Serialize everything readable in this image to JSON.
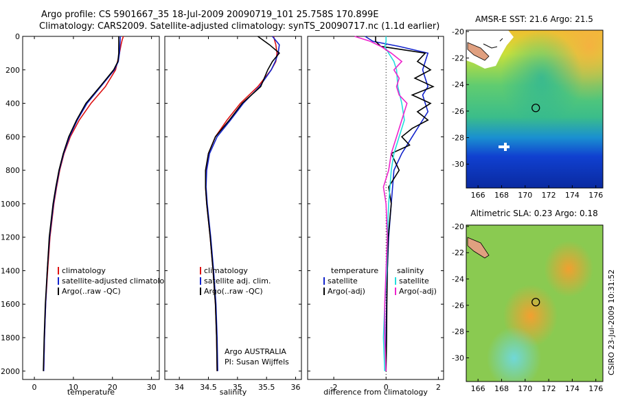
{
  "header": {
    "title_line1": "Argo profile: CS 5901667_35 18-Jul-2009 20090719_101 25.758S 170.899E",
    "title_line2": "Climatology: CARS2009. Satellite-adjusted climatology: synTS_20090717.nc (1.1d earlier)"
  },
  "credits": {
    "argo_line1": "Argo AUSTRALIA",
    "argo_line2": "PI: Susan Wijffels",
    "csiro_stamp": "CSIRO 23-Jul-2009 10:31:52"
  },
  "colors": {
    "climatology": "#dd1111",
    "satellite": "#1122cc",
    "argo": "#000000",
    "satellite_salinity": "#22dddd",
    "argo_salinity": "#ee22cc"
  },
  "chart_data": [
    {
      "type": "line",
      "id": "temperature",
      "title": "",
      "xlabel": "temperature",
      "ylabel": "",
      "xlim": [
        -3,
        32
      ],
      "ylim": [
        2050,
        0
      ],
      "xticks": [
        0,
        10,
        20,
        30
      ],
      "yticks": [
        0,
        200,
        400,
        600,
        800,
        1000,
        1200,
        1400,
        1600,
        1800,
        2000
      ],
      "legend": [
        "climatology",
        "satellite-adjusted climatology",
        "Argo(..raw -QC)"
      ],
      "series": [
        {
          "name": "climatology",
          "color": "#dd1111",
          "depth": [
            0,
            20,
            50,
            100,
            150,
            200,
            300,
            400,
            500,
            600,
            700,
            800,
            900,
            1000,
            1200,
            1400,
            1600,
            1800,
            2000
          ],
          "values": [
            22.8,
            22.5,
            22.2,
            21.8,
            21.3,
            20.8,
            18.2,
            14.5,
            11.5,
            9.2,
            7.6,
            6.5,
            5.7,
            5.0,
            4.0,
            3.4,
            2.9,
            2.6,
            2.4
          ]
        },
        {
          "name": "satellite-adjusted climatology",
          "color": "#1122cc",
          "depth": [
            0,
            20,
            50,
            100,
            150,
            200,
            300,
            400,
            500,
            600,
            700,
            800,
            900,
            1000,
            1200,
            1400,
            1600,
            1800,
            2000
          ],
          "values": [
            22.0,
            22.0,
            21.9,
            21.8,
            21.5,
            20.5,
            17.0,
            13.5,
            11.0,
            9.0,
            7.5,
            6.4,
            5.6,
            4.9,
            3.9,
            3.3,
            2.9,
            2.6,
            2.4
          ]
        },
        {
          "name": "Argo(..raw -QC)",
          "color": "#000000",
          "depth": [
            0,
            20,
            50,
            100,
            150,
            200,
            300,
            400,
            500,
            600,
            700,
            800,
            900,
            1000,
            1200,
            1400,
            1600,
            1800,
            2000
          ],
          "values": [
            21.6,
            21.6,
            21.6,
            21.6,
            21.4,
            20.3,
            16.8,
            13.2,
            10.8,
            8.8,
            7.4,
            6.3,
            5.5,
            4.8,
            3.8,
            3.3,
            2.8,
            2.5,
            2.3
          ]
        }
      ]
    },
    {
      "type": "line",
      "id": "salinity",
      "title": "",
      "xlabel": "salinity",
      "ylabel": "",
      "xlim": [
        33.75,
        36.1
      ],
      "ylim": [
        2050,
        0
      ],
      "xticks": [
        34,
        34.5,
        35,
        35.5,
        36
      ],
      "yticks": [
        0,
        200,
        400,
        600,
        800,
        1000,
        1200,
        1400,
        1600,
        1800,
        2000
      ],
      "legend": [
        "climatology",
        "satellite adj. clim.",
        "Argo(..raw -QC)"
      ],
      "series": [
        {
          "name": "climatology",
          "color": "#dd1111",
          "depth": [
            0,
            50,
            100,
            150,
            200,
            300,
            400,
            500,
            600,
            700,
            800,
            900,
            1000,
            1200,
            1400,
            1600,
            1800,
            2000
          ],
          "values": [
            35.62,
            35.66,
            35.68,
            35.66,
            35.58,
            35.35,
            35.05,
            34.82,
            34.62,
            34.5,
            34.46,
            34.45,
            34.47,
            34.53,
            34.58,
            34.62,
            34.64,
            34.65
          ]
        },
        {
          "name": "satellite adj. clim.",
          "color": "#1122cc",
          "depth": [
            0,
            50,
            100,
            150,
            200,
            300,
            400,
            500,
            600,
            700,
            800,
            900,
            1000,
            1200,
            1400,
            1600,
            1800,
            2000
          ],
          "values": [
            35.6,
            35.72,
            35.7,
            35.65,
            35.58,
            35.38,
            35.1,
            34.88,
            34.65,
            34.52,
            34.47,
            34.46,
            34.48,
            34.54,
            34.59,
            34.63,
            34.65,
            34.66
          ]
        },
        {
          "name": "Argo(..raw -QC)",
          "color": "#000000",
          "depth": [
            0,
            50,
            100,
            150,
            200,
            300,
            400,
            500,
            600,
            700,
            800,
            900,
            1000,
            1200,
            1400,
            1600,
            1800,
            2000
          ],
          "values": [
            35.35,
            35.55,
            35.72,
            35.6,
            35.52,
            35.4,
            35.08,
            34.86,
            34.62,
            34.5,
            34.45,
            34.45,
            34.47,
            34.53,
            34.58,
            34.62,
            34.64,
            34.65
          ]
        }
      ]
    },
    {
      "type": "line",
      "id": "difference",
      "title": "",
      "xlabel": "difference from climatology",
      "ylabel": "",
      "xlim": [
        -3,
        2.2
      ],
      "ylim": [
        2050,
        0
      ],
      "xticks": [
        -2,
        0,
        2
      ],
      "yticks": [
        0,
        200,
        400,
        600,
        800,
        1000,
        1200,
        1400,
        1600,
        1800,
        2000
      ],
      "legend_groups": [
        {
          "heading": "temperature",
          "items": [
            "satellite",
            "Argo(-adj)"
          ]
        },
        {
          "heading": "salinity",
          "items": [
            "satellite",
            "Argo(-adj)"
          ]
        }
      ],
      "series": [
        {
          "name": "satellite",
          "group": "temperature",
          "color": "#1122cc",
          "depth": [
            0,
            30,
            60,
            100,
            150,
            200,
            250,
            300,
            350,
            400,
            450,
            500,
            600,
            700,
            800,
            1000,
            1200,
            1400,
            1600,
            1800,
            2000
          ],
          "values": [
            -0.8,
            -0.5,
            0.5,
            1.6,
            1.5,
            1.4,
            1.5,
            1.6,
            1.4,
            1.5,
            1.6,
            1.4,
            1.0,
            0.6,
            0.3,
            0.2,
            0.1,
            0.05,
            0.02,
            0.0,
            0.0
          ]
        },
        {
          "name": "Argo(-adj)",
          "group": "temperature",
          "color": "#000000",
          "depth": [
            0,
            30,
            60,
            100,
            150,
            200,
            250,
            300,
            350,
            400,
            450,
            500,
            550,
            600,
            650,
            700,
            800,
            900,
            1000,
            1200,
            1400,
            1600,
            1800,
            2000
          ],
          "values": [
            -0.4,
            -0.4,
            -0.2,
            1.5,
            1.2,
            1.7,
            1.1,
            1.8,
            1.0,
            1.7,
            1.2,
            1.6,
            1.0,
            0.6,
            0.9,
            0.2,
            0.5,
            0.1,
            0.2,
            0.08,
            0.05,
            0.03,
            0.02,
            0.0
          ]
        },
        {
          "name": "satellite",
          "group": "salinity",
          "color": "#22dddd",
          "depth": [
            0,
            30,
            60,
            100,
            150,
            200,
            300,
            400,
            500,
            600,
            700,
            800,
            1000,
            1200,
            1400,
            1600,
            1800,
            2000
          ],
          "values": [
            0.0,
            0.0,
            -0.05,
            0.1,
            0.3,
            0.4,
            0.45,
            0.6,
            0.7,
            0.5,
            0.3,
            0.2,
            0.1,
            0.05,
            0.03,
            -0.05,
            -0.1,
            -0.05
          ]
        },
        {
          "name": "Argo(-adj)",
          "group": "salinity",
          "color": "#ee22cc",
          "depth": [
            0,
            30,
            60,
            100,
            150,
            200,
            250,
            300,
            350,
            400,
            500,
            600,
            700,
            800,
            900,
            1000,
            1200,
            1400,
            1600,
            1800,
            2000
          ],
          "values": [
            -1.2,
            -0.6,
            -0.2,
            0.2,
            0.6,
            0.3,
            0.5,
            0.4,
            0.5,
            0.8,
            0.6,
            0.4,
            0.2,
            0.1,
            -0.1,
            0.0,
            0.05,
            0.0,
            -0.05,
            -0.05,
            0.0
          ]
        }
      ]
    },
    {
      "type": "heatmap",
      "id": "sst",
      "title": "AMSR-E SST: 21.6 Argo: 21.5",
      "xlabel": "",
      "ylabel": "",
      "xlim": [
        165,
        176.6
      ],
      "ylim": [
        -31.8,
        -19.9
      ],
      "xticks": [
        166,
        168,
        170,
        172,
        174,
        176
      ],
      "yticks": [
        -20,
        -22,
        -24,
        -26,
        -28,
        -30
      ],
      "profile_location": {
        "lon": 170.9,
        "lat": -25.76
      }
    },
    {
      "type": "heatmap",
      "id": "sla",
      "title": "Altimetric SLA: 0.23 Argo: 0.18",
      "xlabel": "",
      "ylabel": "",
      "xlim": [
        165,
        176.6
      ],
      "ylim": [
        -31.8,
        -19.9
      ],
      "xticks": [
        166,
        168,
        170,
        172,
        174,
        176
      ],
      "yticks": [
        -20,
        -22,
        -24,
        -26,
        -28,
        -30
      ],
      "profile_location": {
        "lon": 170.9,
        "lat": -25.76
      }
    }
  ]
}
